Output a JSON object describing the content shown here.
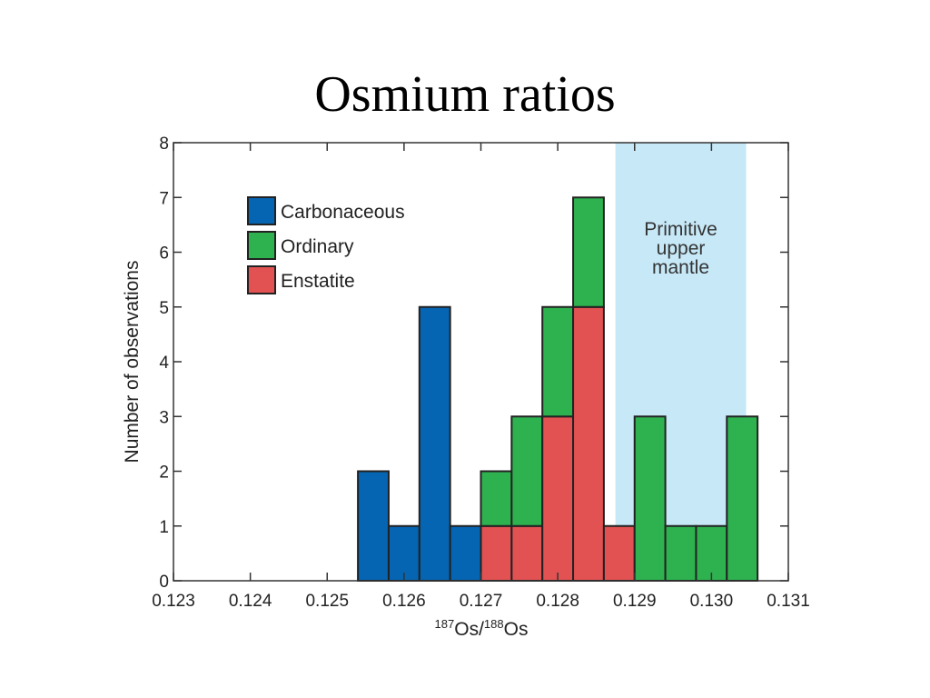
{
  "slide": {
    "title": "Osmium ratios"
  },
  "chart_data": {
    "type": "bar",
    "subtype": "stacked-histogram",
    "xlabel": {
      "sup1": "187",
      "base1": "Os/",
      "sup2": "188",
      "base2": "Os"
    },
    "ylabel": "Number of observations",
    "xlim": [
      0.123,
      0.131
    ],
    "ylim": [
      0,
      8
    ],
    "x_ticks": [
      "0.123",
      "0.124",
      "0.125",
      "0.126",
      "0.127",
      "0.128",
      "0.129",
      "0.130",
      "0.131"
    ],
    "y_ticks": [
      "0",
      "1",
      "2",
      "3",
      "4",
      "5",
      "6",
      "7",
      "8"
    ],
    "bin_width": 0.0004,
    "bin_starts": [
      0.1254,
      0.1258,
      0.1262,
      0.1266,
      0.127,
      0.1274,
      0.1278,
      0.1282,
      0.1286,
      0.129,
      0.1294,
      0.1298,
      0.1302
    ],
    "series": [
      {
        "name": "Enstatite",
        "color": "#e25252",
        "values": [
          0,
          0,
          0,
          0,
          1,
          1,
          3,
          5,
          1,
          0,
          0,
          0,
          0
        ]
      },
      {
        "name": "Ordinary",
        "color": "#2eb24f",
        "values": [
          0,
          0,
          0,
          0,
          1,
          2,
          2,
          2,
          0,
          3,
          1,
          1,
          3
        ]
      },
      {
        "name": "Carbonaceous",
        "color": "#0565b3",
        "values": [
          2,
          1,
          5,
          1,
          0,
          0,
          0,
          0,
          0,
          0,
          0,
          0,
          0
        ]
      }
    ],
    "legend": {
      "position": "top-left",
      "order": [
        "Carbonaceous",
        "Ordinary",
        "Enstatite"
      ]
    },
    "shaded_region": {
      "label_lines": [
        "Primitive",
        "upper",
        "mantle"
      ],
      "x_range": [
        0.12875,
        0.13045
      ],
      "color": "#c6e8f7"
    },
    "grid": false
  }
}
